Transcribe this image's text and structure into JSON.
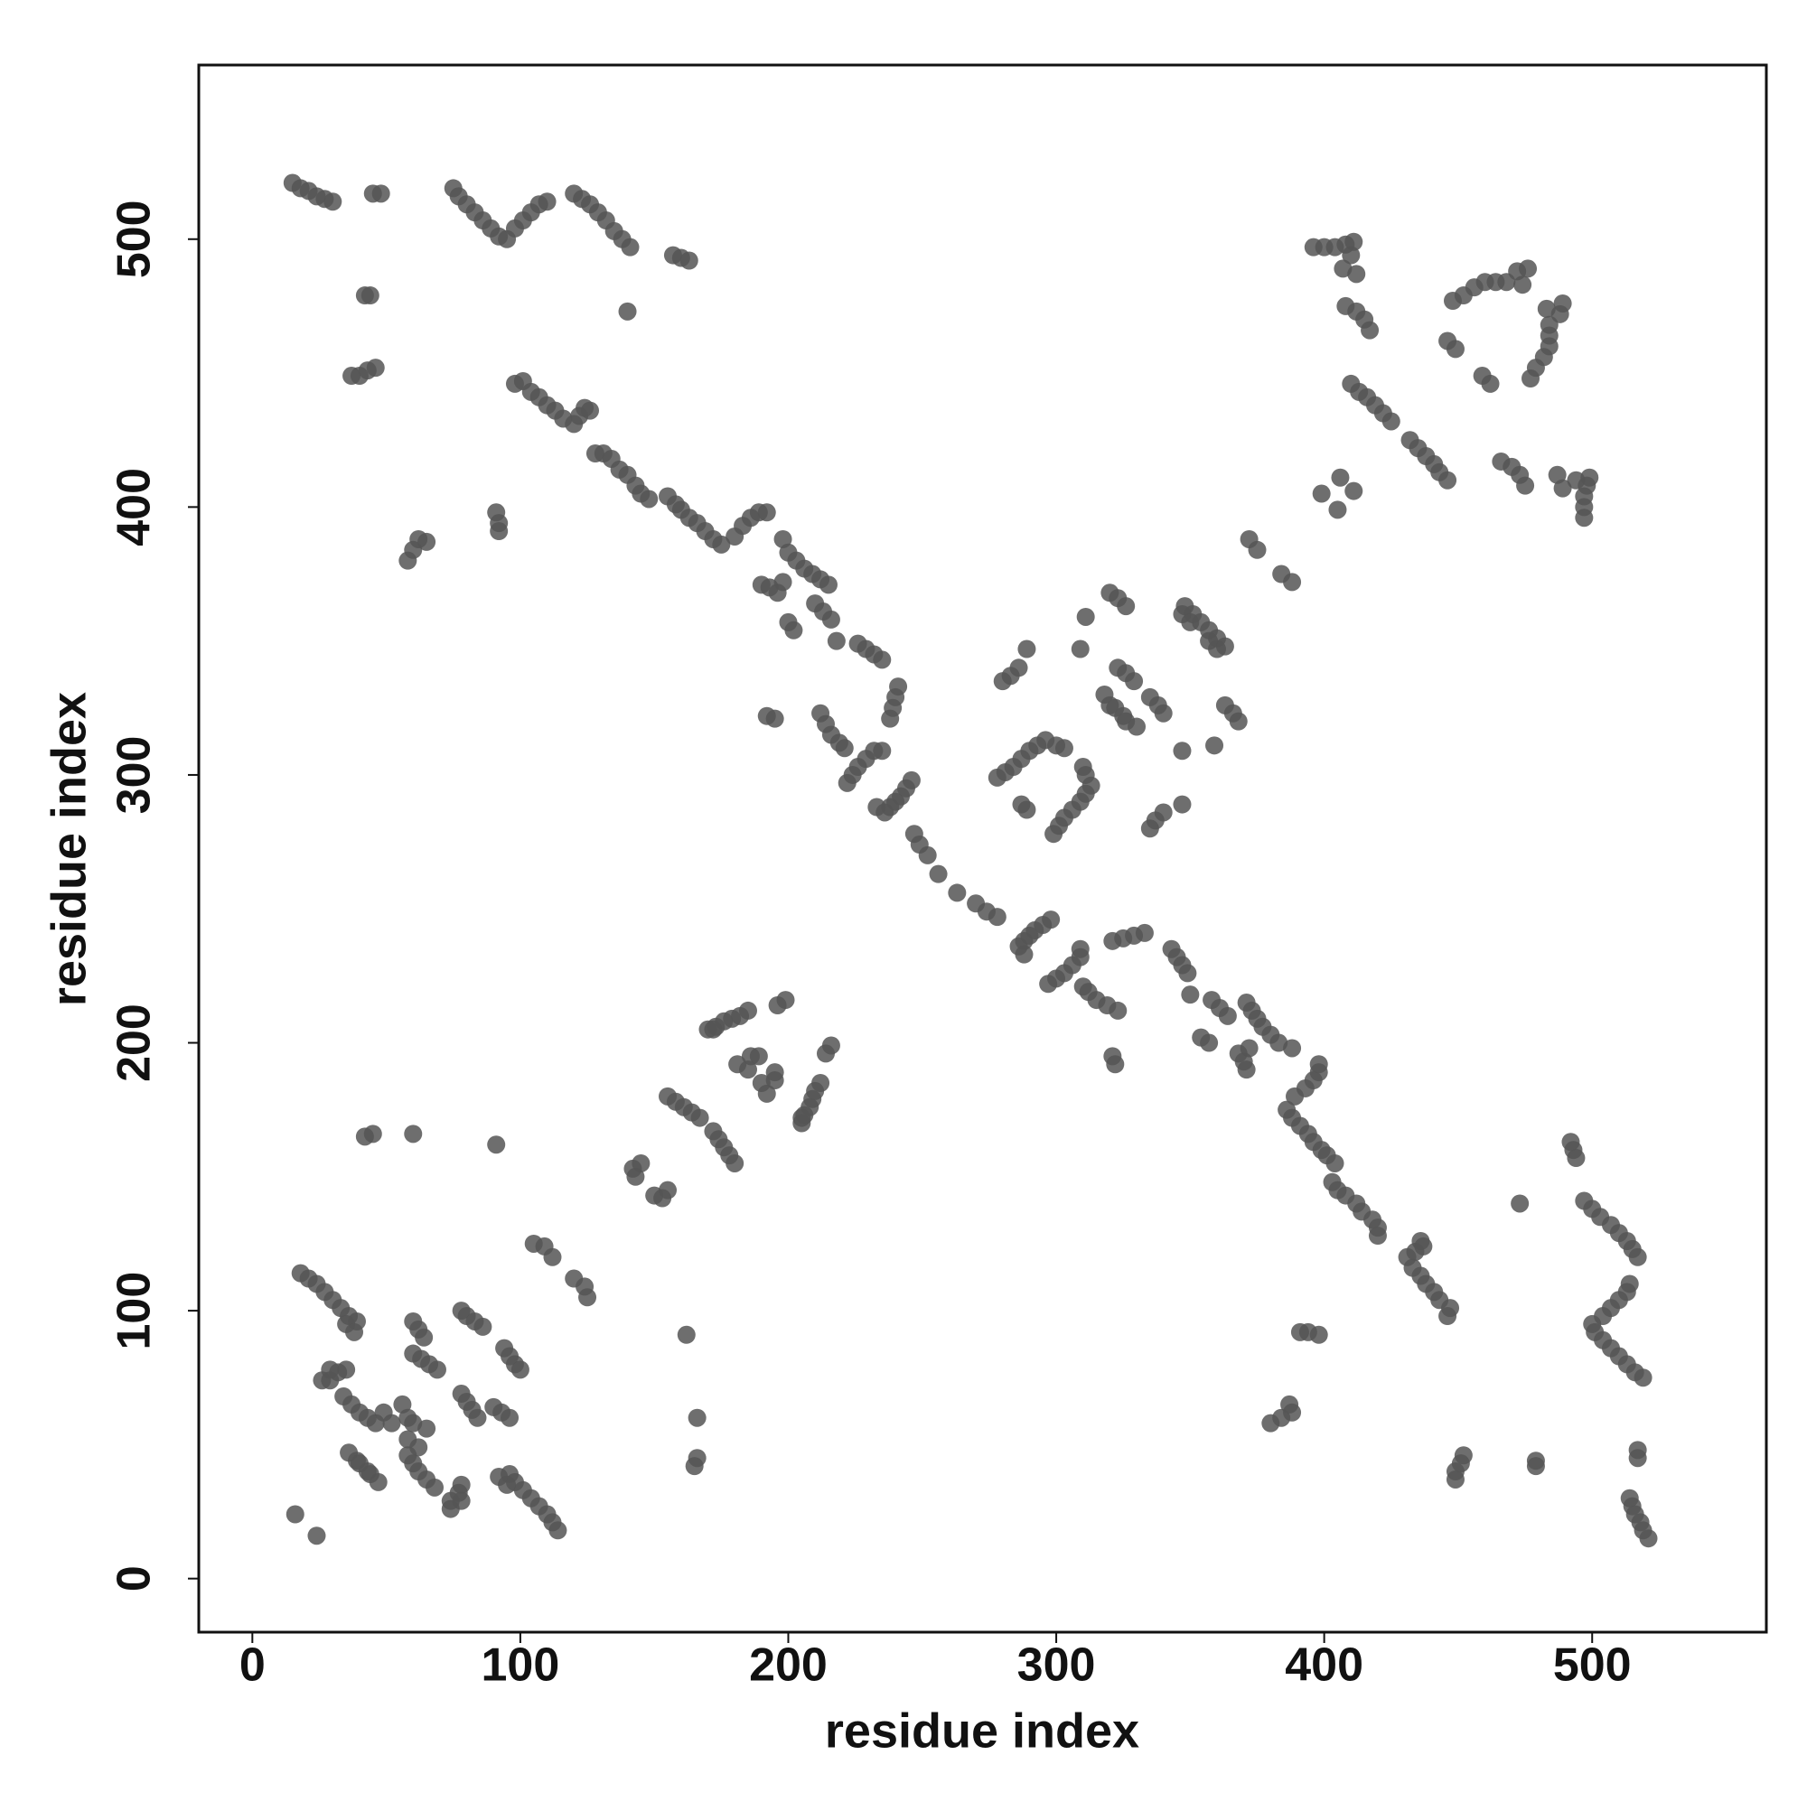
{
  "chart_data": {
    "type": "scatter",
    "xlabel": "residue index",
    "ylabel": "residue index",
    "xlim": [
      -20,
      565
    ],
    "ylim": [
      -20,
      565
    ],
    "xticks": [
      0,
      100,
      200,
      300,
      400,
      500
    ],
    "yticks": [
      0,
      100,
      200,
      300,
      400,
      500
    ],
    "series": [
      {
        "color": "#555555",
        "x": [
          15,
          18,
          21,
          24,
          27,
          30,
          45,
          48,
          42,
          44,
          37,
          40,
          43,
          46,
          75,
          77,
          80,
          83,
          86,
          89,
          92,
          95,
          98,
          101,
          104,
          107,
          110,
          120,
          123,
          126,
          129,
          132,
          135,
          138,
          141,
          140,
          157,
          160,
          163,
          58,
          60,
          62,
          65,
          91,
          92,
          92,
          98,
          101,
          104,
          107,
          110,
          113,
          116,
          120,
          122,
          124,
          126,
          128,
          131,
          134,
          137,
          140,
          143,
          145,
          148,
          155,
          158,
          160,
          163,
          166,
          169,
          172,
          175,
          180,
          183,
          186,
          189,
          192,
          190,
          193,
          196,
          198,
          198,
          200,
          203,
          206,
          209,
          212,
          215,
          200,
          202,
          210,
          213,
          216,
          218,
          226,
          229,
          232,
          235,
          240,
          241,
          239,
          238,
          192,
          195,
          212,
          214,
          216,
          219,
          221,
          222,
          224,
          226,
          229,
          232,
          235,
          233,
          236,
          238,
          240,
          242,
          244,
          246,
          247,
          249,
          252,
          256,
          278,
          281,
          284,
          287,
          290,
          293,
          296,
          300,
          303,
          280,
          283,
          286,
          289,
          287,
          309,
          311,
          320,
          323,
          326,
          323,
          326,
          329,
          318,
          320,
          325,
          348,
          351,
          354,
          357,
          360,
          372,
          375,
          399,
          406,
          396,
          400,
          404,
          408,
          411,
          410,
          407,
          412,
          408,
          412,
          415,
          417,
          410,
          413,
          416,
          419,
          422,
          425,
          448,
          452,
          456,
          460,
          464,
          468,
          472,
          476,
          474,
          446,
          449,
          18,
          21,
          24,
          27,
          30,
          33,
          36,
          39,
          16,
          26,
          29,
          32,
          35,
          34,
          37,
          40,
          43,
          46,
          49,
          52,
          36,
          39,
          40,
          60,
          62,
          64,
          60,
          63,
          66,
          69,
          56,
          58,
          78,
          80,
          83,
          86,
          29,
          38,
          35,
          105,
          109,
          112,
          145,
          143,
          142,
          155,
          158,
          161,
          164,
          167,
          170,
          173,
          176,
          179,
          182,
          185,
          186,
          189,
          190,
          192,
          196,
          199,
          172,
          42,
          45,
          60,
          91,
          521,
          519,
          518,
          516,
          515,
          514,
          517,
          517,
          479,
          479,
          449,
          449,
          451,
          452,
          519,
          516,
          513,
          510,
          507,
          504,
          501,
          500,
          504,
          507,
          510,
          513,
          514,
          517,
          515,
          513,
          510,
          507,
          503,
          500,
          497,
          473,
          494,
          493,
          492,
          380,
          384,
          388,
          387,
          398,
          394,
          391,
          446,
          447,
          443,
          441,
          438,
          436,
          433,
          431,
          434,
          437,
          436,
          420,
          420,
          418,
          414,
          412,
          408,
          405,
          403,
          404,
          401,
          399,
          396,
          394,
          391,
          388,
          386,
          389,
          393,
          396,
          398,
          398,
          371,
          370,
          368,
          372,
          388,
          383,
          380,
          377,
          375,
          373,
          371,
          357,
          354,
          364,
          361,
          358,
          350,
          349,
          347,
          345,
          343,
          329,
          333,
          325,
          321,
          322,
          321,
          323,
          319,
          315,
          312,
          310,
          297,
          300,
          303,
          306,
          309,
          309,
          288,
          286,
          288,
          290,
          292,
          295,
          298,
          278,
          274,
          270,
          263,
          299,
          301,
          303,
          306,
          309,
          311,
          313,
          311,
          310,
          335,
          337,
          340,
          347,
          289,
          347,
          359,
          368,
          366,
          363,
          340,
          338,
          335,
          330,
          326,
          322,
          363,
          360,
          357,
          350,
          347,
          388,
          384,
          405,
          411,
          497,
          497,
          497,
          498,
          499,
          494,
          489,
          487,
          475,
          473,
          470,
          466,
          446,
          443,
          441,
          438,
          435,
          432,
          477,
          479,
          482,
          484,
          484,
          484,
          488,
          489,
          483,
          462,
          459,
          114,
          112,
          110,
          107,
          104,
          101,
          98,
          96,
          24,
          74,
          74,
          77,
          78,
          68,
          65,
          62,
          60,
          58,
          62,
          58,
          47,
          44,
          43,
          96,
          93,
          90,
          84,
          82,
          80,
          78,
          65,
          60,
          100,
          98,
          96,
          94,
          78,
          92,
          95,
          125,
          124,
          120,
          155,
          150,
          153,
          180,
          178,
          176,
          174,
          172,
          205,
          206,
          208,
          209,
          210,
          212,
          195,
          195,
          185,
          181,
          214,
          216,
          205,
          165,
          166,
          166,
          162
        ],
        "values": [
          521,
          519,
          518,
          516,
          515,
          514,
          517,
          517,
          479,
          479,
          449,
          449,
          451,
          452,
          519,
          516,
          513,
          510,
          507,
          504,
          501,
          500,
          504,
          507,
          510,
          513,
          514,
          517,
          515,
          513,
          510,
          507,
          503,
          500,
          497,
          473,
          494,
          493,
          492,
          380,
          384,
          388,
          387,
          398,
          394,
          391,
          446,
          447,
          443,
          441,
          438,
          436,
          433,
          431,
          434,
          437,
          436,
          420,
          420,
          418,
          414,
          412,
          408,
          405,
          403,
          404,
          401,
          399,
          396,
          394,
          391,
          388,
          386,
          389,
          393,
          396,
          398,
          398,
          371,
          370,
          368,
          372,
          388,
          383,
          380,
          377,
          375,
          373,
          371,
          357,
          354,
          364,
          361,
          358,
          350,
          349,
          347,
          345,
          343,
          329,
          333,
          325,
          321,
          322,
          321,
          323,
          319,
          315,
          312,
          310,
          297,
          300,
          303,
          306,
          309,
          309,
          288,
          286,
          288,
          290,
          292,
          295,
          298,
          278,
          274,
          270,
          263,
          299,
          301,
          303,
          306,
          309,
          311,
          313,
          311,
          310,
          335,
          337,
          340,
          347,
          289,
          347,
          359,
          368,
          366,
          363,
          340,
          338,
          335,
          330,
          326,
          322,
          363,
          360,
          357,
          350,
          347,
          388,
          384,
          405,
          411,
          497,
          497,
          497,
          498,
          499,
          494,
          489,
          487,
          475,
          473,
          470,
          466,
          446,
          443,
          441,
          438,
          435,
          432,
          477,
          479,
          482,
          484,
          484,
          484,
          488,
          489,
          483,
          462,
          459,
          114,
          112,
          110,
          107,
          104,
          101,
          98,
          96,
          24,
          74,
          74,
          77,
          78,
          68,
          65,
          62,
          60,
          58,
          62,
          58,
          47,
          44,
          43,
          96,
          93,
          90,
          84,
          82,
          80,
          78,
          65,
          60,
          100,
          98,
          96,
          94,
          78,
          92,
          95,
          125,
          124,
          120,
          155,
          150,
          153,
          180,
          178,
          176,
          174,
          172,
          205,
          206,
          208,
          209,
          210,
          212,
          195,
          195,
          185,
          181,
          214,
          216,
          205,
          165,
          166,
          166,
          162,
          15,
          18,
          21,
          24,
          27,
          30,
          45,
          48,
          42,
          44,
          37,
          40,
          43,
          46,
          75,
          77,
          80,
          83,
          86,
          89,
          92,
          95,
          98,
          101,
          104,
          107,
          110,
          120,
          123,
          126,
          129,
          132,
          135,
          138,
          141,
          140,
          157,
          160,
          163,
          58,
          60,
          62,
          65,
          91,
          92,
          92,
          98,
          101,
          104,
          107,
          110,
          113,
          116,
          120,
          122,
          124,
          126,
          128,
          131,
          134,
          137,
          140,
          143,
          145,
          148,
          155,
          158,
          160,
          163,
          166,
          169,
          172,
          175,
          180,
          183,
          186,
          189,
          192,
          190,
          193,
          196,
          198,
          198,
          200,
          203,
          206,
          209,
          212,
          215,
          200,
          202,
          210,
          213,
          216,
          218,
          226,
          229,
          232,
          235,
          240,
          241,
          239,
          238,
          192,
          195,
          212,
          214,
          216,
          219,
          221,
          222,
          224,
          226,
          229,
          232,
          235,
          233,
          236,
          238,
          240,
          242,
          244,
          246,
          247,
          249,
          252,
          256,
          278,
          281,
          284,
          287,
          290,
          293,
          296,
          300,
          303,
          280,
          283,
          286,
          289,
          287,
          309,
          311,
          320,
          323,
          326,
          323,
          326,
          329,
          318,
          320,
          325,
          348,
          351,
          354,
          357,
          360,
          372,
          375,
          399,
          406,
          396,
          400,
          404,
          408,
          411,
          410,
          407,
          412,
          408,
          412,
          415,
          417,
          410,
          413,
          416,
          419,
          422,
          425,
          448,
          452,
          456,
          460,
          464,
          468,
          472,
          476,
          474,
          446,
          449,
          18,
          21,
          24,
          27,
          30,
          33,
          36,
          39,
          16,
          26,
          29,
          32,
          35,
          34,
          37,
          40,
          43,
          46,
          49,
          52,
          36,
          39,
          40,
          60,
          62,
          64,
          60,
          63,
          66,
          69,
          56,
          58,
          78,
          80,
          83,
          86,
          29,
          38,
          35,
          105,
          109,
          112,
          145,
          143,
          142,
          155,
          158,
          161,
          164,
          167,
          170,
          173,
          176,
          179,
          182,
          185,
          186,
          189,
          190,
          192,
          196,
          199,
          172,
          42,
          45,
          60,
          91
        ]
      }
    ]
  }
}
